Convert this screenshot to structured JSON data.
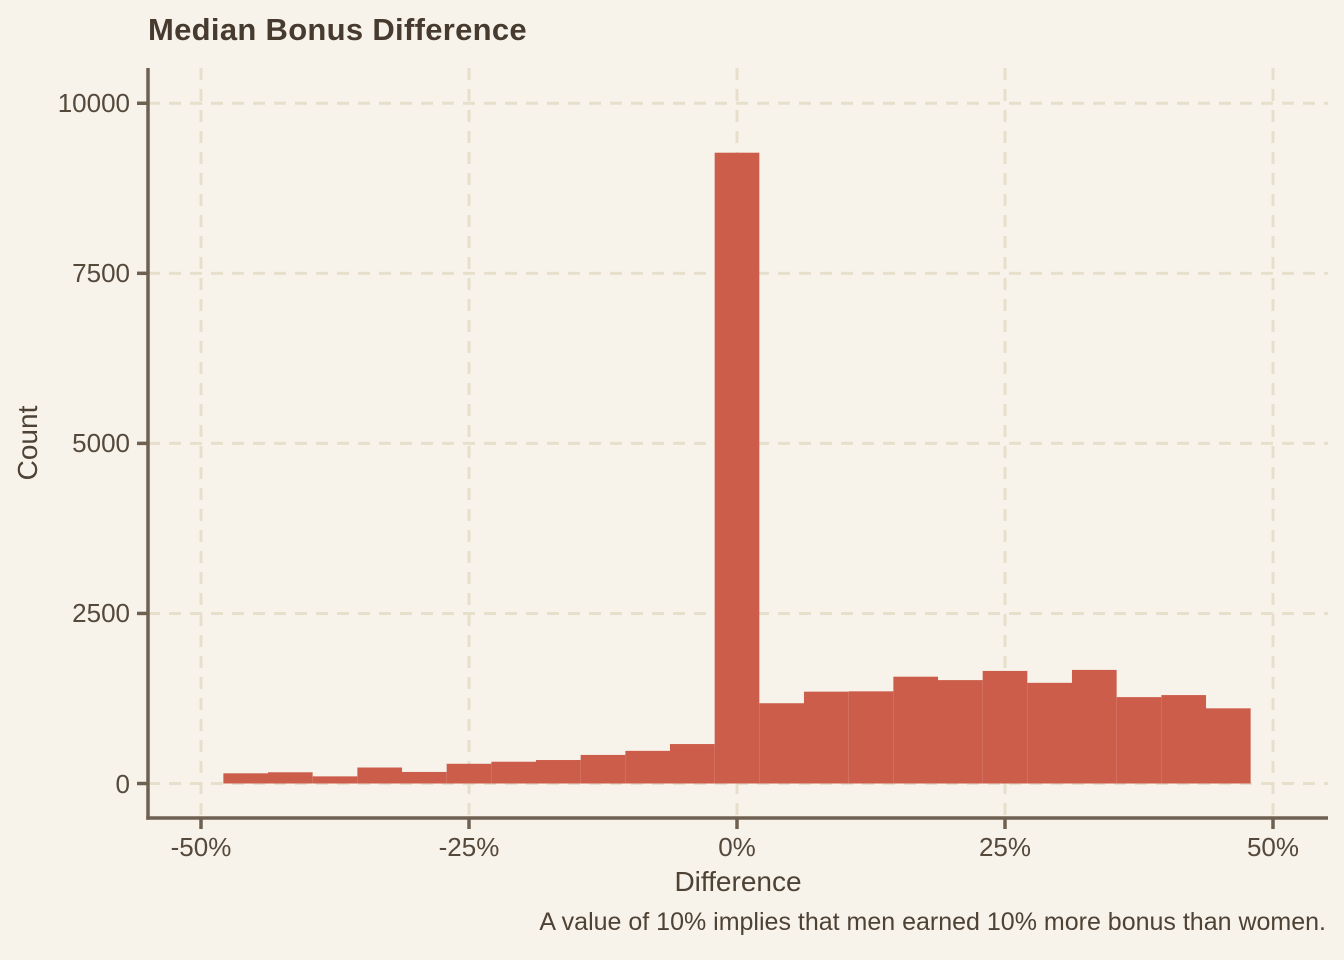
{
  "chart_data": {
    "type": "bar",
    "subtype": "histogram",
    "title": "Median Bonus Difference",
    "xlabel": "Difference",
    "ylabel": "Count",
    "caption": "A value of 10% implies that men earned 10% more bonus than women.",
    "legend": "none",
    "grid": "dashed",
    "bin_width_pct": 4.1667,
    "bin_centers_pct": [
      -45.83,
      -41.67,
      -37.5,
      -33.33,
      -29.17,
      -25,
      -20.83,
      -16.67,
      -12.5,
      -8.33,
      -4.17,
      0,
      4.17,
      8.33,
      12.5,
      16.67,
      20.83,
      25,
      29.17,
      33.33,
      37.5,
      41.67,
      45.83
    ],
    "counts": [
      150,
      165,
      105,
      235,
      170,
      290,
      320,
      345,
      420,
      480,
      580,
      9273,
      1180,
      1350,
      1355,
      1570,
      1520,
      1655,
      1480,
      1670,
      1270,
      1300,
      1105
    ],
    "x_ticks": {
      "values": [
        -50,
        -25,
        0,
        25,
        50
      ],
      "labels": [
        "-50%",
        "-25%",
        "0%",
        "25%",
        "50%"
      ]
    },
    "y_ticks": {
      "values": [
        0,
        2500,
        5000,
        7500,
        10000
      ],
      "labels": [
        "0",
        "2500",
        "5000",
        "7500",
        "10000"
      ]
    },
    "xlim_pct": [
      -55,
      55
    ],
    "ylim": [
      -500,
      10500
    ],
    "colors": {
      "bar": "#CC5D4A",
      "background": "#F7F3EB",
      "grid": "#E6DFCB",
      "axis": "#6F6152",
      "tick": "#6F6152",
      "text": "#4E4235"
    }
  }
}
